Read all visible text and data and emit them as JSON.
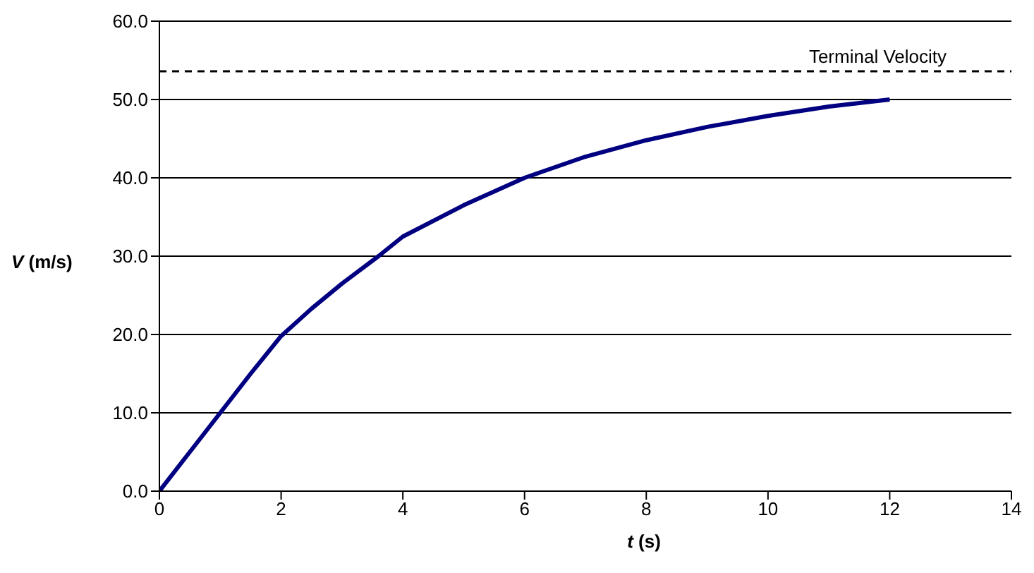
{
  "chart_data": {
    "type": "line",
    "xlabel": "t (s)",
    "ylabel": "V (m/s)",
    "series": [
      {
        "color": "#000080",
        "x": [
          0,
          0.5,
          1,
          1.5,
          2,
          2.5,
          3,
          3.6,
          4,
          5,
          6,
          7,
          8,
          9,
          10,
          11,
          12
        ],
        "values": [
          0,
          5,
          10,
          15,
          19.8,
          23.3,
          26.5,
          30,
          32.5,
          36.5,
          40,
          42.7,
          44.8,
          46.5,
          47.9,
          49.1,
          50
        ]
      }
    ],
    "xlim": [
      0,
      14
    ],
    "xticks": [
      0,
      2,
      4,
      6,
      8,
      10,
      12,
      14
    ],
    "ylim": [
      0,
      60
    ],
    "yticks": [
      {
        "value": 0,
        "label": "0.0"
      },
      {
        "value": 10,
        "label": "10.0"
      },
      {
        "value": 20,
        "label": "20.0"
      },
      {
        "value": 30,
        "label": "30.0"
      },
      {
        "value": 40,
        "label": "40.0"
      },
      {
        "value": 50,
        "label": "50.0"
      },
      {
        "value": 60,
        "label": "60.0"
      }
    ],
    "grid": "y",
    "marker": "none",
    "line_style": "solid",
    "ref_lines": [
      {
        "axis": "y",
        "value": 53.6,
        "label": "Terminal Velocity",
        "color": "#000000",
        "line_style": "dashed"
      }
    ]
  }
}
